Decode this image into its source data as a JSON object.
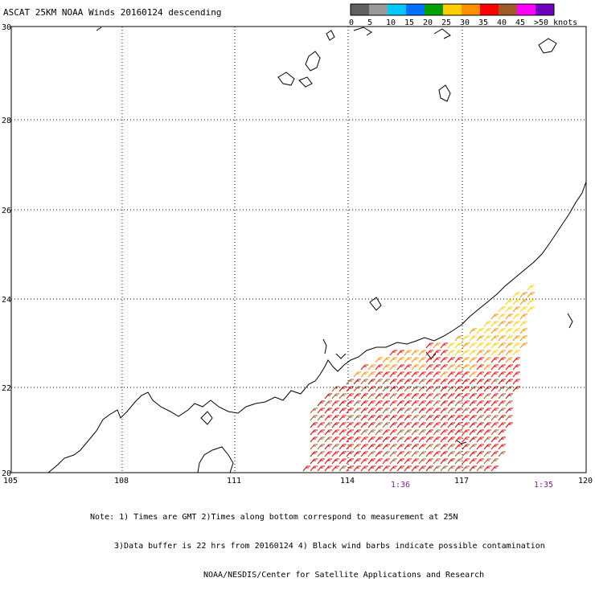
{
  "title": "ASCAT 25KM NOAA Winds 20160124 descending",
  "legend": {
    "labels": [
      "0",
      "5",
      "10",
      "15",
      "20",
      "25",
      "30",
      "35",
      "40",
      "45",
      ">50 knots"
    ],
    "colors": [
      "#606060",
      "#9a9a9a",
      "#00c8ff",
      "#0070ff",
      "#00a000",
      "#ffd000",
      "#ff9000",
      "#ff0000",
      "#a05a28",
      "#ff00ff",
      "#7000c0"
    ]
  },
  "lat_labels": [
    "30",
    "28",
    "26",
    "24",
    "22",
    "20"
  ],
  "lon_labels": [
    "105",
    "108",
    "111",
    "114",
    "117",
    "120"
  ],
  "times": [
    "1:36",
    "1:35"
  ],
  "notes": [
    "Note: 1) Times are GMT 2)Times along bottom correspond to measurement at 25N",
    "3)Data buffer is 22 hrs from 20160124 4) Black wind barbs indicate possible contamination",
    "NOAA/NESDIS/Center for Satellite Applications and Research"
  ]
}
